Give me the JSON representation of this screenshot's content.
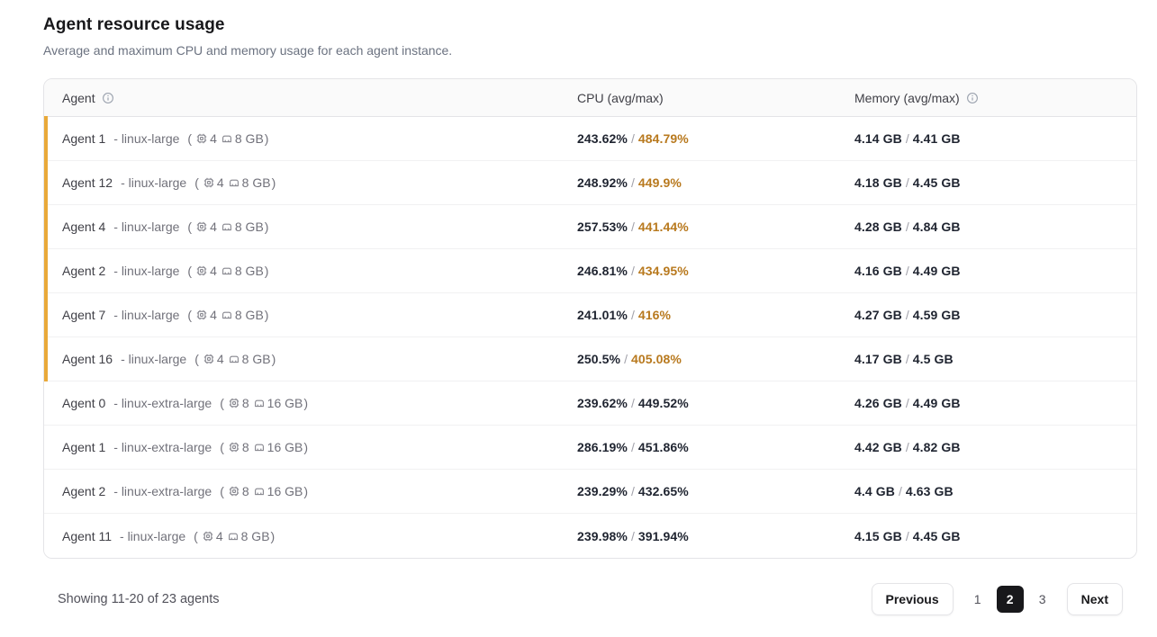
{
  "page": {
    "title": "Agent resource usage",
    "subtitle": "Average and maximum CPU and memory usage for each agent instance."
  },
  "table": {
    "columns": {
      "agent": "Agent",
      "cpu": "CPU (avg/max)",
      "memory": "Memory (avg/max)"
    },
    "format": {
      "dash": "-",
      "separator": "/",
      "paren_open": "(",
      "paren_close": ")"
    },
    "icons": {
      "agent_header": "info-icon",
      "memory_header": "info-icon",
      "cpu_spec": "cpu-chip-icon",
      "ram_spec": "memory-stick-icon"
    },
    "rows": [
      {
        "name": "Agent 1",
        "size": "linux-large",
        "cpus": "4",
        "ram": "8 GB",
        "cpu_avg": "243.62%",
        "cpu_max": "484.79%",
        "mem_avg": "4.14 GB",
        "mem_max": "4.41 GB",
        "highlighted": true
      },
      {
        "name": "Agent 12",
        "size": "linux-large",
        "cpus": "4",
        "ram": "8 GB",
        "cpu_avg": "248.92%",
        "cpu_max": "449.9%",
        "mem_avg": "4.18 GB",
        "mem_max": "4.45 GB",
        "highlighted": true
      },
      {
        "name": "Agent 4",
        "size": "linux-large",
        "cpus": "4",
        "ram": "8 GB",
        "cpu_avg": "257.53%",
        "cpu_max": "441.44%",
        "mem_avg": "4.28 GB",
        "mem_max": "4.84 GB",
        "highlighted": true
      },
      {
        "name": "Agent 2",
        "size": "linux-large",
        "cpus": "4",
        "ram": "8 GB",
        "cpu_avg": "246.81%",
        "cpu_max": "434.95%",
        "mem_avg": "4.16 GB",
        "mem_max": "4.49 GB",
        "highlighted": true
      },
      {
        "name": "Agent 7",
        "size": "linux-large",
        "cpus": "4",
        "ram": "8 GB",
        "cpu_avg": "241.01%",
        "cpu_max": "416%",
        "mem_avg": "4.27 GB",
        "mem_max": "4.59 GB",
        "highlighted": true
      },
      {
        "name": "Agent 16",
        "size": "linux-large",
        "cpus": "4",
        "ram": "8 GB",
        "cpu_avg": "250.5%",
        "cpu_max": "405.08%",
        "mem_avg": "4.17 GB",
        "mem_max": "4.5 GB",
        "highlighted": true
      },
      {
        "name": "Agent 0",
        "size": "linux-extra-large",
        "cpus": "8",
        "ram": "16 GB",
        "cpu_avg": "239.62%",
        "cpu_max": "449.52%",
        "mem_avg": "4.26 GB",
        "mem_max": "4.49 GB",
        "highlighted": false
      },
      {
        "name": "Agent 1",
        "size": "linux-extra-large",
        "cpus": "8",
        "ram": "16 GB",
        "cpu_avg": "286.19%",
        "cpu_max": "451.86%",
        "mem_avg": "4.42 GB",
        "mem_max": "4.82 GB",
        "highlighted": false
      },
      {
        "name": "Agent 2",
        "size": "linux-extra-large",
        "cpus": "8",
        "ram": "16 GB",
        "cpu_avg": "239.29%",
        "cpu_max": "432.65%",
        "mem_avg": "4.4 GB",
        "mem_max": "4.63 GB",
        "highlighted": false
      },
      {
        "name": "Agent 11",
        "size": "linux-large",
        "cpus": "4",
        "ram": "8 GB",
        "cpu_avg": "239.98%",
        "cpu_max": "391.94%",
        "mem_avg": "4.15 GB",
        "mem_max": "4.45 GB",
        "highlighted": false
      }
    ]
  },
  "footer": {
    "status": "Showing 11-20 of 23 agents",
    "pagination": {
      "previous_label": "Previous",
      "pages": [
        "1",
        "2",
        "3"
      ],
      "current_page": "2",
      "next_label": "Next"
    }
  },
  "colors": {
    "accent_bar": "#E9A939",
    "cpu_max_highlight": "#B8791E",
    "active_page_bg": "#18181B"
  }
}
